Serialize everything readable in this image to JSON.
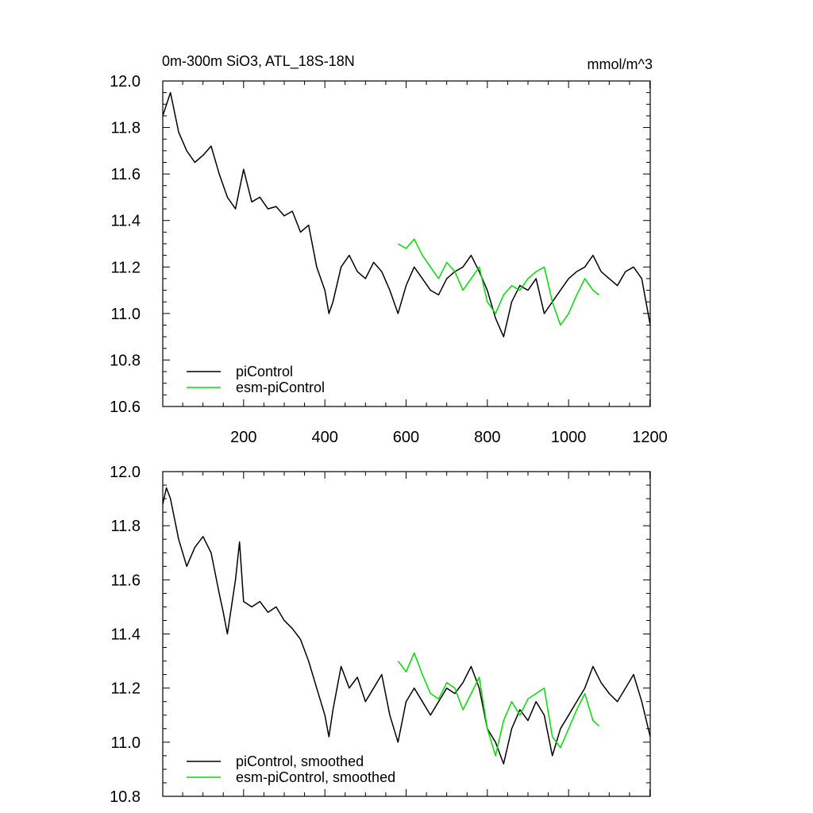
{
  "header": {
    "title": "0m-300m SiO3, ATL_18S-18N",
    "units": "mmol/m^3"
  },
  "colors": {
    "picontrol": "#000000",
    "esm_picontrol": "#00e000"
  },
  "chart_data": [
    {
      "type": "line",
      "xlim": [
        1,
        1201
      ],
      "ylim": [
        10.6,
        12.0
      ],
      "yticks": [
        "10.6",
        "10.8",
        "11.0",
        "11.2",
        "11.4",
        "11.6",
        "11.8",
        "12.0"
      ],
      "xticks": [
        "200",
        "400",
        "600",
        "800",
        "1000",
        "1200"
      ],
      "legend_placement": "bottom-left",
      "series": [
        {
          "name": "piControl",
          "color_key": "picontrol",
          "x": [
            1,
            20,
            40,
            60,
            80,
            100,
            120,
            140,
            160,
            180,
            200,
            220,
            240,
            260,
            280,
            300,
            320,
            340,
            360,
            380,
            400,
            410,
            420,
            440,
            460,
            480,
            500,
            520,
            540,
            560,
            580,
            600,
            620,
            640,
            660,
            680,
            700,
            720,
            740,
            760,
            780,
            800,
            820,
            840,
            860,
            880,
            900,
            920,
            940,
            960,
            980,
            1000,
            1020,
            1040,
            1060,
            1080,
            1100,
            1120,
            1140,
            1160,
            1180,
            1201
          ],
          "values": [
            11.85,
            11.95,
            11.78,
            11.7,
            11.65,
            11.68,
            11.72,
            11.6,
            11.5,
            11.45,
            11.62,
            11.48,
            11.5,
            11.45,
            11.46,
            11.42,
            11.44,
            11.35,
            11.38,
            11.2,
            11.1,
            11.0,
            11.05,
            11.2,
            11.25,
            11.18,
            11.15,
            11.22,
            11.18,
            11.1,
            11.0,
            11.12,
            11.2,
            11.15,
            11.1,
            11.08,
            11.15,
            11.18,
            11.2,
            11.25,
            11.18,
            11.1,
            10.98,
            10.9,
            11.05,
            11.12,
            11.1,
            11.15,
            11.0,
            11.05,
            11.1,
            11.15,
            11.18,
            11.2,
            11.25,
            11.18,
            11.15,
            11.12,
            11.18,
            11.2,
            11.15,
            10.95
          ]
        },
        {
          "name": "esm-piControl",
          "color_key": "esm_picontrol",
          "x": [
            580,
            600,
            620,
            640,
            660,
            680,
            700,
            720,
            740,
            760,
            780,
            800,
            820,
            840,
            860,
            880,
            900,
            920,
            940,
            960,
            980,
            1000,
            1020,
            1040,
            1060,
            1075
          ],
          "values": [
            11.3,
            11.28,
            11.32,
            11.25,
            11.2,
            11.15,
            11.22,
            11.18,
            11.1,
            11.15,
            11.2,
            11.05,
            11.0,
            11.08,
            11.12,
            11.1,
            11.15,
            11.18,
            11.2,
            11.05,
            10.95,
            11.0,
            11.08,
            11.15,
            11.1,
            11.08
          ]
        }
      ]
    },
    {
      "type": "line",
      "xlim": [
        1,
        1201
      ],
      "ylim": [
        10.8,
        12.0
      ],
      "yticks": [
        "10.8",
        "11.0",
        "11.2",
        "11.4",
        "11.6",
        "11.8",
        "12.0"
      ],
      "xticks": [],
      "legend_placement": "bottom-left",
      "series": [
        {
          "name": "piControl, smoothed",
          "color_key": "picontrol",
          "x": [
            1,
            10,
            20,
            40,
            60,
            80,
            100,
            120,
            140,
            150,
            160,
            180,
            190,
            200,
            220,
            240,
            260,
            280,
            300,
            320,
            340,
            360,
            380,
            400,
            410,
            420,
            440,
            460,
            480,
            500,
            520,
            540,
            560,
            580,
            600,
            620,
            640,
            660,
            680,
            700,
            720,
            740,
            760,
            780,
            800,
            820,
            840,
            860,
            880,
            900,
            920,
            940,
            960,
            980,
            1000,
            1020,
            1040,
            1060,
            1080,
            1100,
            1120,
            1140,
            1160,
            1180,
            1201
          ],
          "values": [
            11.88,
            11.94,
            11.9,
            11.75,
            11.65,
            11.72,
            11.76,
            11.7,
            11.55,
            11.48,
            11.4,
            11.6,
            11.74,
            11.52,
            11.5,
            11.52,
            11.48,
            11.5,
            11.45,
            11.42,
            11.38,
            11.3,
            11.2,
            11.1,
            11.02,
            11.12,
            11.28,
            11.2,
            11.24,
            11.15,
            11.2,
            11.25,
            11.1,
            11.0,
            11.15,
            11.2,
            11.15,
            11.1,
            11.15,
            11.2,
            11.18,
            11.22,
            11.28,
            11.2,
            11.05,
            11.0,
            10.92,
            11.05,
            11.12,
            11.08,
            11.15,
            11.1,
            10.95,
            11.05,
            11.1,
            11.15,
            11.2,
            11.28,
            11.22,
            11.18,
            11.15,
            11.2,
            11.25,
            11.15,
            11.02
          ]
        },
        {
          "name": "esm-piControl, smoothed",
          "color_key": "esm_picontrol",
          "x": [
            580,
            600,
            620,
            640,
            660,
            680,
            700,
            720,
            740,
            760,
            780,
            800,
            820,
            840,
            860,
            880,
            900,
            920,
            940,
            960,
            980,
            1000,
            1020,
            1040,
            1060,
            1075
          ],
          "values": [
            11.3,
            11.26,
            11.33,
            11.25,
            11.18,
            11.16,
            11.22,
            11.2,
            11.12,
            11.18,
            11.24,
            11.05,
            10.95,
            11.08,
            11.15,
            11.1,
            11.16,
            11.18,
            11.2,
            11.02,
            10.98,
            11.05,
            11.12,
            11.18,
            11.08,
            11.06
          ]
        }
      ]
    }
  ]
}
